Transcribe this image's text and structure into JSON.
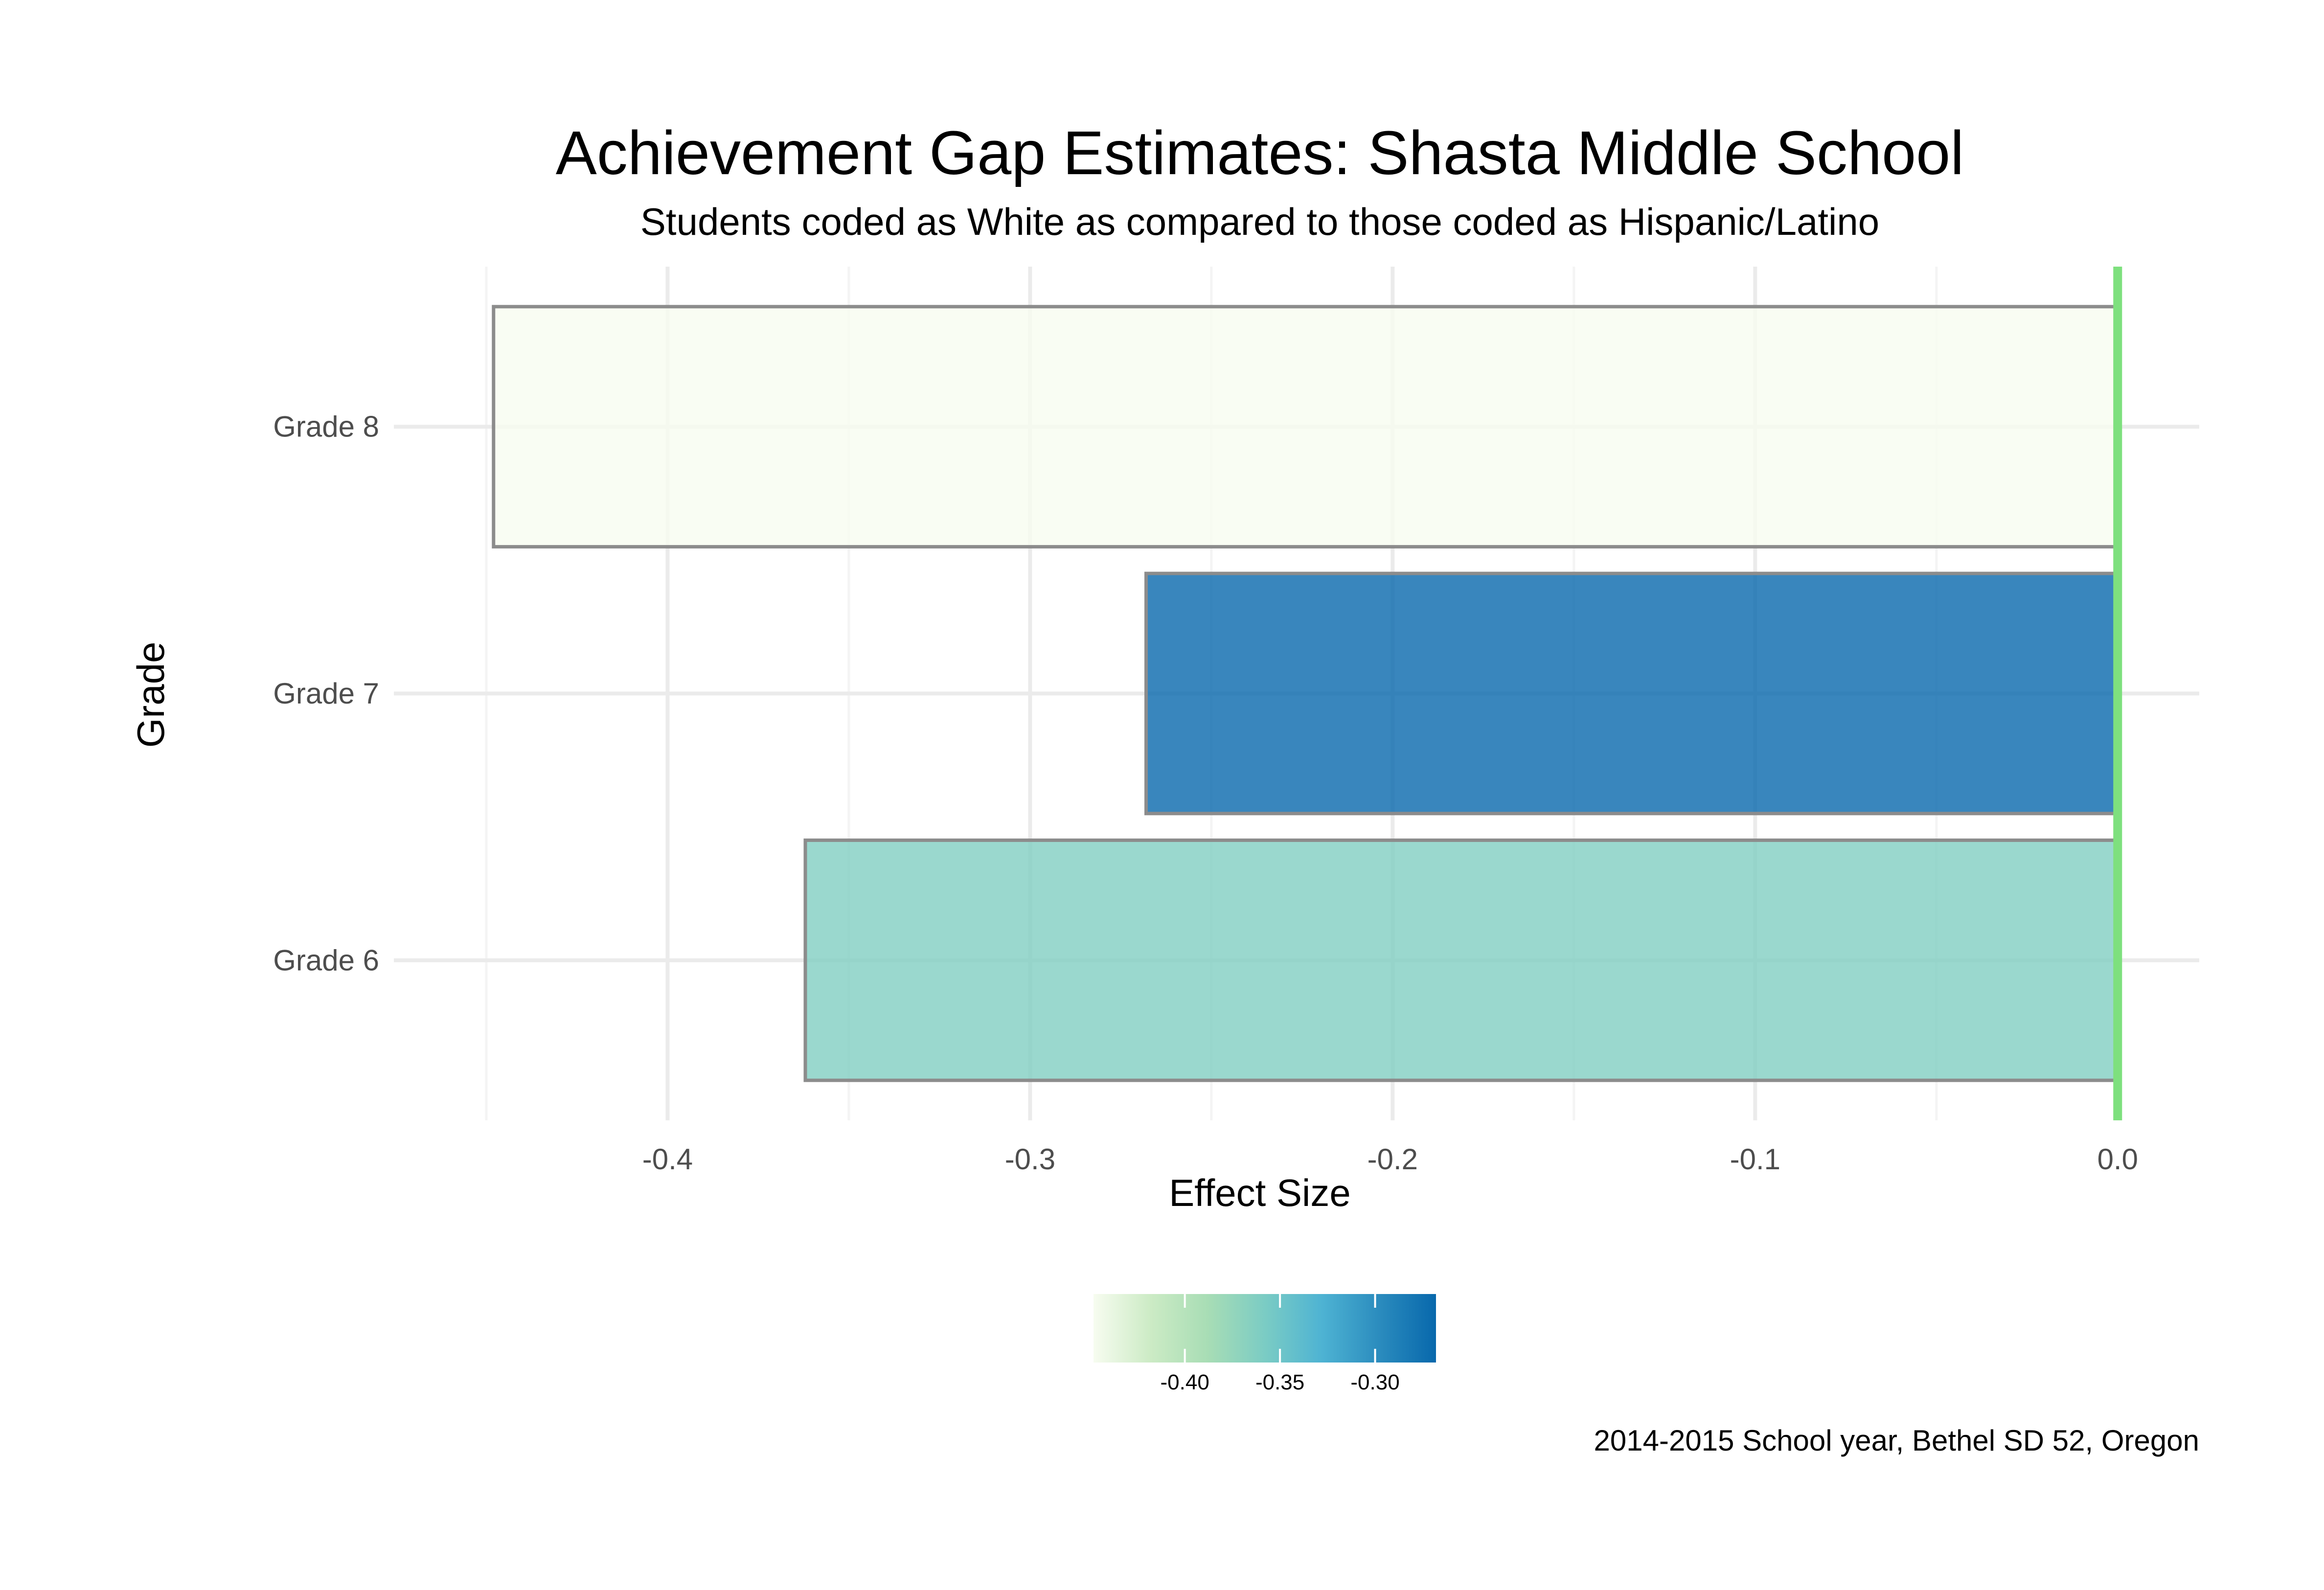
{
  "chart_data": {
    "type": "bar",
    "orientation": "horizontal",
    "title": "Achievement Gap Estimates: Shasta Middle School",
    "subtitle": "Students coded as White as compared to those coded as Hispanic/Latino",
    "caption": "2014-2015 School year, Bethel SD 52, Oregon",
    "xlabel": "Effect Size",
    "ylabel": "Grade",
    "categories": [
      "Grade 6",
      "Grade 7",
      "Grade 8"
    ],
    "values": [
      -0.362,
      -0.268,
      -0.448
    ],
    "xlim": [
      -0.4755,
      0.0225
    ],
    "xticks": [
      -0.4,
      -0.3,
      -0.2,
      -0.1,
      0.0
    ],
    "xtick_labels": [
      "-0.4",
      "-0.3",
      "-0.2",
      "-0.1",
      "0.0"
    ],
    "grid": true,
    "reference_line": {
      "x": 0.0,
      "color": "#7ee07e"
    },
    "legend": {
      "placement": "bottom",
      "type": "colorbar",
      "range": [
        -0.448,
        -0.268
      ],
      "ticks": [
        -0.4,
        -0.35,
        -0.3
      ],
      "tick_labels": [
        "-0.40",
        "-0.35",
        "-0.30"
      ],
      "colors": [
        "#f7fcf0",
        "#ccebc5",
        "#a8ddb5",
        "#7bccc4",
        "#4eb3d3",
        "#2b8cbe",
        "#0868ac"
      ]
    },
    "colors": {
      "bar_outline": "#8c8c8c",
      "grid_major": "#ebebeb",
      "grid_minor": "#f4f4f4",
      "text": "#000000",
      "tick_text": "#4d4d4d"
    }
  }
}
